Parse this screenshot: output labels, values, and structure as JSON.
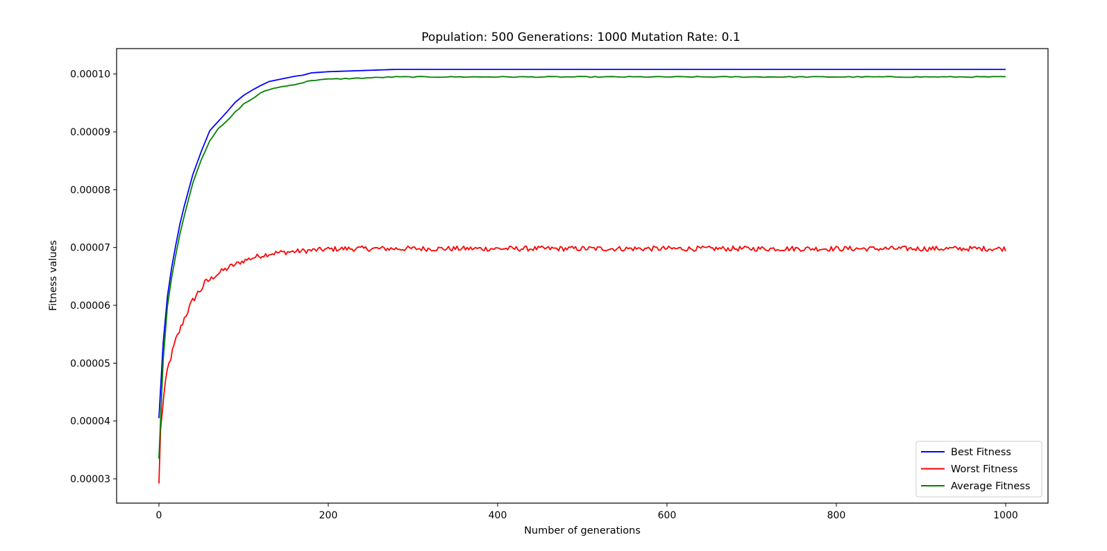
{
  "chart_data": {
    "type": "line",
    "title": "Population: 500 Generations: 1000 Mutation Rate: 0.1",
    "xlabel": "Number of generations",
    "ylabel": "Fitness values",
    "xlim": [
      -50,
      1050
    ],
    "ylim": [
      2.58e-05,
      0.0001044
    ],
    "xticks": [
      0,
      200,
      400,
      600,
      800,
      1000
    ],
    "xtick_labels": [
      "0",
      "200",
      "400",
      "600",
      "800",
      "1000"
    ],
    "yticks": [
      3e-05,
      4e-05,
      5e-05,
      6e-05,
      7e-05,
      8e-05,
      9e-05,
      0.0001
    ],
    "ytick_labels": [
      "0.00003",
      "0.00004",
      "0.00005",
      "0.00006",
      "0.00007",
      "0.00008",
      "0.00009",
      "0.00010"
    ],
    "grid": false,
    "legend_position": "lower-right",
    "series": [
      {
        "name": "Best Fitness",
        "color": "#0000ff",
        "x": [
          0,
          5,
          10,
          15,
          20,
          25,
          30,
          40,
          50,
          60,
          70,
          80,
          90,
          100,
          110,
          120,
          130,
          140,
          150,
          160,
          170,
          180,
          190,
          200,
          220,
          240,
          260,
          280,
          300,
          400,
          500,
          600,
          700,
          800,
          900,
          1000
        ],
        "y": [
          4.05e-05,
          5.35e-05,
          6.15e-05,
          6.65e-05,
          7.05e-05,
          7.42e-05,
          7.72e-05,
          8.26e-05,
          8.66e-05,
          9.02e-05,
          9.18e-05,
          9.34e-05,
          9.51e-05,
          9.63e-05,
          9.72e-05,
          9.8e-05,
          9.87e-05,
          9.9e-05,
          9.93e-05,
          9.96e-05,
          9.98e-05,
          0.0001002,
          0.0001003,
          0.0001004,
          0.0001005,
          0.0001006,
          0.0001007,
          0.0001008,
          0.0001008,
          0.0001008,
          0.0001008,
          0.0001008,
          0.0001008,
          0.0001008,
          0.0001008,
          0.0001008
        ]
      },
      {
        "name": "Worst Fitness",
        "color": "#ff0000",
        "x": [
          0,
          2,
          5,
          10,
          15,
          20,
          25,
          30,
          35,
          40,
          45,
          50,
          55,
          60,
          65,
          70,
          75,
          80,
          85,
          90,
          95,
          100,
          110,
          120,
          130,
          140,
          150,
          160,
          170,
          180,
          190,
          200,
          220,
          240,
          260,
          280,
          300,
          350,
          400,
          450,
          500,
          550,
          600,
          650,
          700,
          750,
          800,
          850,
          900,
          950,
          1000
        ],
        "y": [
          2.92e-05,
          3.85e-05,
          4.35e-05,
          4.88e-05,
          5.15e-05,
          5.4e-05,
          5.58e-05,
          5.78e-05,
          5.93e-05,
          6.08e-05,
          6.2e-05,
          6.28e-05,
          6.4e-05,
          6.44e-05,
          6.5e-05,
          6.55e-05,
          6.6e-05,
          6.63e-05,
          6.68e-05,
          6.7e-05,
          6.74e-05,
          6.77e-05,
          6.82e-05,
          6.86e-05,
          6.89e-05,
          6.91e-05,
          6.92e-05,
          6.93e-05,
          6.94e-05,
          6.95e-05,
          6.96e-05,
          6.97e-05,
          6.98e-05,
          6.98e-05,
          6.98e-05,
          6.98e-05,
          6.98e-05,
          6.98e-05,
          6.98e-05,
          6.98e-05,
          6.98e-05,
          6.98e-05,
          6.98e-05,
          6.98e-05,
          6.98e-05,
          6.98e-05,
          6.98e-05,
          6.98e-05,
          6.98e-05,
          6.98e-05,
          6.98e-05
        ]
      },
      {
        "name": "Average Fitness",
        "color": "#008000",
        "x": [
          0,
          5,
          10,
          15,
          20,
          25,
          30,
          40,
          50,
          60,
          70,
          80,
          90,
          100,
          110,
          120,
          130,
          140,
          150,
          160,
          170,
          180,
          190,
          200,
          220,
          240,
          260,
          280,
          300,
          400,
          500,
          600,
          700,
          800,
          900,
          1000
        ],
        "y": [
          3.35e-05,
          5.05e-05,
          5.98e-05,
          6.48e-05,
          6.88e-05,
          7.25e-05,
          7.55e-05,
          8.12e-05,
          8.52e-05,
          8.85e-05,
          9.05e-05,
          9.18e-05,
          9.34e-05,
          9.48e-05,
          9.57e-05,
          9.67e-05,
          9.73e-05,
          9.77e-05,
          9.79e-05,
          9.82e-05,
          9.85e-05,
          9.89e-05,
          9.9e-05,
          9.91e-05,
          9.92e-05,
          9.93e-05,
          9.94e-05,
          9.95e-05,
          9.95e-05,
          9.95e-05,
          9.95e-05,
          9.95e-05,
          9.95e-05,
          9.95e-05,
          9.95e-05,
          9.95e-05
        ]
      }
    ]
  }
}
